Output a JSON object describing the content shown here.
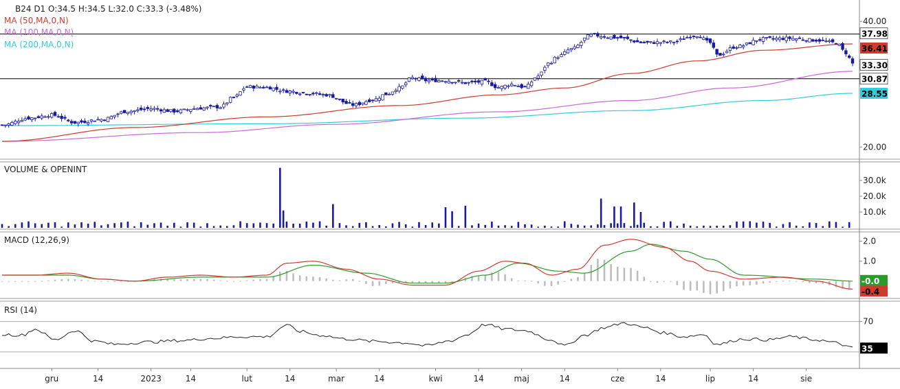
{
  "header": {
    "ohlc": "B24  D1  O:34.5  H:34.5  L:32.0  C:33.3  (-3.48%)",
    "ma50": "MA (50,MA,0,N)",
    "ma100": "MA (100,MA,0,N)",
    "ma200": "MA (200,MA,0,N)"
  },
  "colors": {
    "candle_up": "#ffffff",
    "candle_down": "#1a1aa0",
    "candle_outline": "#1a1aa0",
    "ma50": "#d03a2e",
    "ma100": "#c86ad8",
    "ma200": "#33ccdd",
    "volume": "#1a1aa0",
    "macd": "#d03a2e",
    "signal": "#2a9a2a",
    "histogram": "#bdbdbd",
    "rsi": "#222222",
    "rsi_badge_bg": "#000000"
  },
  "chart_data": [
    {
      "type": "candlestick",
      "title": "",
      "ylim": [
        18.5,
        41
      ],
      "yticks": [
        "40.00",
        "20.00"
      ],
      "hlines": [
        37.98,
        30.87
      ],
      "price_badges": [
        {
          "label": "37.98",
          "bg": "#ffffff",
          "fg": "#000000"
        },
        {
          "label": "36.41",
          "bg": "#d03a2e",
          "fg": "#000000"
        },
        {
          "label": "33.30",
          "bg": "#ffffff",
          "fg": "#000000"
        },
        {
          "label": "30.87",
          "bg": "#ffffff",
          "fg": "#000000"
        },
        {
          "label": "28.55",
          "bg": "#33ccdd",
          "fg": "#000000"
        }
      ],
      "price_badge_values": [
        37.98,
        36.41,
        33.3,
        30.87,
        28.55
      ],
      "anchors": {
        "close": [
          [
            0,
            23.5
          ],
          [
            8,
            24.6
          ],
          [
            15,
            25.1
          ],
          [
            22,
            23.9
          ],
          [
            30,
            24.4
          ],
          [
            38,
            25.7
          ],
          [
            45,
            26.1
          ],
          [
            52,
            25.7
          ],
          [
            60,
            26.2
          ],
          [
            66,
            26.4
          ],
          [
            70,
            27.9
          ],
          [
            74,
            29.6
          ],
          [
            80,
            29.5
          ],
          [
            86,
            28.9
          ],
          [
            92,
            28.6
          ],
          [
            98,
            28.3
          ],
          [
            106,
            26.7
          ],
          [
            112,
            27.5
          ],
          [
            116,
            28.4
          ],
          [
            120,
            29.4
          ],
          [
            124,
            31.0
          ],
          [
            128,
            30.6
          ],
          [
            134,
            30.6
          ],
          [
            140,
            30.2
          ],
          [
            146,
            30.4
          ],
          [
            150,
            29.5
          ],
          [
            154,
            30.0
          ],
          [
            158,
            29.5
          ],
          [
            162,
            31.3
          ],
          [
            165,
            33.3
          ],
          [
            168,
            34.4
          ],
          [
            172,
            35.6
          ],
          [
            178,
            37.8
          ],
          [
            186,
            37.4
          ],
          [
            194,
            36.6
          ],
          [
            202,
            36.7
          ],
          [
            210,
            37.8
          ],
          [
            214,
            36.6
          ],
          [
            216,
            34.6
          ],
          [
            222,
            36.0
          ],
          [
            230,
            37.2
          ],
          [
            238,
            37.3
          ],
          [
            246,
            37.0
          ],
          [
            252,
            36.6
          ],
          [
            255,
            35.0
          ],
          [
            257,
            33.3
          ]
        ],
        "ma50": [
          [
            0,
            20.9
          ],
          [
            40,
            23.1
          ],
          [
            80,
            24.8
          ],
          [
            120,
            26.6
          ],
          [
            150,
            28.3
          ],
          [
            170,
            29.4
          ],
          [
            190,
            31.7
          ],
          [
            210,
            33.7
          ],
          [
            230,
            35.4
          ],
          [
            257,
            36.41
          ]
        ],
        "ma100": [
          [
            0,
            20.9
          ],
          [
            60,
            22.3
          ],
          [
            100,
            23.6
          ],
          [
            150,
            25.6
          ],
          [
            190,
            27.4
          ],
          [
            220,
            29.4
          ],
          [
            257,
            32.05
          ]
        ],
        "ma200": [
          [
            0,
            23.4
          ],
          [
            80,
            23.7
          ],
          [
            140,
            24.6
          ],
          [
            190,
            25.8
          ],
          [
            230,
            27.4
          ],
          [
            257,
            28.55
          ]
        ]
      }
    },
    {
      "type": "bar",
      "title": "VOLUME & OPENINT",
      "ylim": [
        0,
        40000
      ],
      "yticks": [
        "30.0k",
        "20.0k",
        "10.0k"
      ],
      "yticks_values": [
        30000,
        20000,
        10000
      ],
      "spikes": [
        [
          84,
          38000
        ],
        [
          85,
          11000
        ],
        [
          100,
          15000
        ],
        [
          134,
          13000
        ],
        [
          136,
          10500
        ],
        [
          140,
          14000
        ],
        [
          181,
          18500
        ],
        [
          185,
          13500
        ],
        [
          187,
          13500
        ],
        [
          191,
          16000
        ],
        [
          193,
          10000
        ]
      ],
      "base_level": 2200
    },
    {
      "type": "line",
      "title": "MACD (12,26,9)",
      "ylim": [
        -0.8,
        2.4
      ],
      "yticks": [
        "2.0",
        "1.0"
      ],
      "yticks_values": [
        2.0,
        1.0
      ],
      "badges": [
        {
          "label": "-0.0",
          "bg": "#2a9a2a",
          "fg": "#ffffff"
        },
        {
          "label": "-0.4",
          "bg": "#d03a2e",
          "fg": "#000000"
        }
      ],
      "series": [
        {
          "key": "macd",
          "points": [
            [
              0,
              0.3
            ],
            [
              10,
              0.3
            ],
            [
              20,
              0.4
            ],
            [
              30,
              0.1
            ],
            [
              40,
              0.0
            ],
            [
              50,
              0.2
            ],
            [
              60,
              0.3
            ],
            [
              70,
              0.2
            ],
            [
              80,
              0.3
            ],
            [
              86,
              0.9
            ],
            [
              94,
              1.0
            ],
            [
              104,
              0.6
            ],
            [
              114,
              0.1
            ],
            [
              124,
              -0.2
            ],
            [
              134,
              -0.2
            ],
            [
              144,
              0.5
            ],
            [
              152,
              1.0
            ],
            [
              158,
              0.9
            ],
            [
              166,
              0.3
            ],
            [
              174,
              0.6
            ],
            [
              182,
              1.8
            ],
            [
              190,
              2.1
            ],
            [
              200,
              1.7
            ],
            [
              208,
              1.0
            ],
            [
              214,
              0.5
            ],
            [
              224,
              0.1
            ],
            [
              236,
              0.2
            ],
            [
              246,
              -0.0
            ],
            [
              257,
              -0.4
            ]
          ]
        },
        {
          "key": "signal",
          "points": [
            [
              0,
              0.3
            ],
            [
              20,
              0.3
            ],
            [
              30,
              0.1
            ],
            [
              40,
              0.0
            ],
            [
              60,
              0.2
            ],
            [
              80,
              0.2
            ],
            [
              94,
              0.8
            ],
            [
              110,
              0.4
            ],
            [
              124,
              -0.1
            ],
            [
              134,
              -0.1
            ],
            [
              146,
              0.3
            ],
            [
              156,
              0.9
            ],
            [
              168,
              0.5
            ],
            [
              176,
              0.4
            ],
            [
              190,
              1.5
            ],
            [
              196,
              1.85
            ],
            [
              206,
              1.5
            ],
            [
              214,
              1.1
            ],
            [
              224,
              0.3
            ],
            [
              246,
              0.1
            ],
            [
              257,
              -0.0
            ]
          ]
        }
      ]
    },
    {
      "type": "line",
      "title": "RSI (14)",
      "ylim": [
        10,
        95
      ],
      "yticks": [
        "70"
      ],
      "yticks_values": [
        70
      ],
      "hlines": [
        70,
        30
      ],
      "badges": [
        {
          "label": "35",
          "bg": "#000000",
          "fg": "#ffffff"
        }
      ],
      "series": [
        {
          "key": "rsi",
          "points": [
            [
              0,
              53
            ],
            [
              6,
              52
            ],
            [
              10,
              60
            ],
            [
              16,
              46
            ],
            [
              22,
              58
            ],
            [
              28,
              44
            ],
            [
              34,
              40
            ],
            [
              44,
              43
            ],
            [
              54,
              45
            ],
            [
              64,
              48
            ],
            [
              72,
              50
            ],
            [
              80,
              50
            ],
            [
              86,
              65
            ],
            [
              90,
              57
            ],
            [
              96,
              52
            ],
            [
              104,
              47
            ],
            [
              112,
              44
            ],
            [
              122,
              42
            ],
            [
              128,
              38
            ],
            [
              136,
              45
            ],
            [
              140,
              52
            ],
            [
              146,
              66
            ],
            [
              152,
              60
            ],
            [
              158,
              58
            ],
            [
              166,
              46
            ],
            [
              170,
              38
            ],
            [
              176,
              52
            ],
            [
              182,
              62
            ],
            [
              188,
              68
            ],
            [
              194,
              62
            ],
            [
              200,
              55
            ],
            [
              206,
              50
            ],
            [
              212,
              53
            ],
            [
              216,
              40
            ],
            [
              224,
              47
            ],
            [
              232,
              46
            ],
            [
              238,
              50
            ],
            [
              246,
              46
            ],
            [
              252,
              42
            ],
            [
              257,
              35
            ]
          ]
        }
      ]
    }
  ],
  "xaxis": {
    "labels": [
      "gru",
      "14",
      "2023",
      "14",
      "lut",
      "14",
      "mar",
      "14",
      "kwi",
      "14",
      "maj",
      "14",
      "cze",
      "14",
      "lip",
      "14",
      "sie"
    ],
    "label_bars": [
      15,
      29,
      45,
      57,
      74,
      87,
      101,
      114,
      131,
      144,
      157,
      170,
      186,
      199,
      214,
      227,
      243
    ]
  }
}
